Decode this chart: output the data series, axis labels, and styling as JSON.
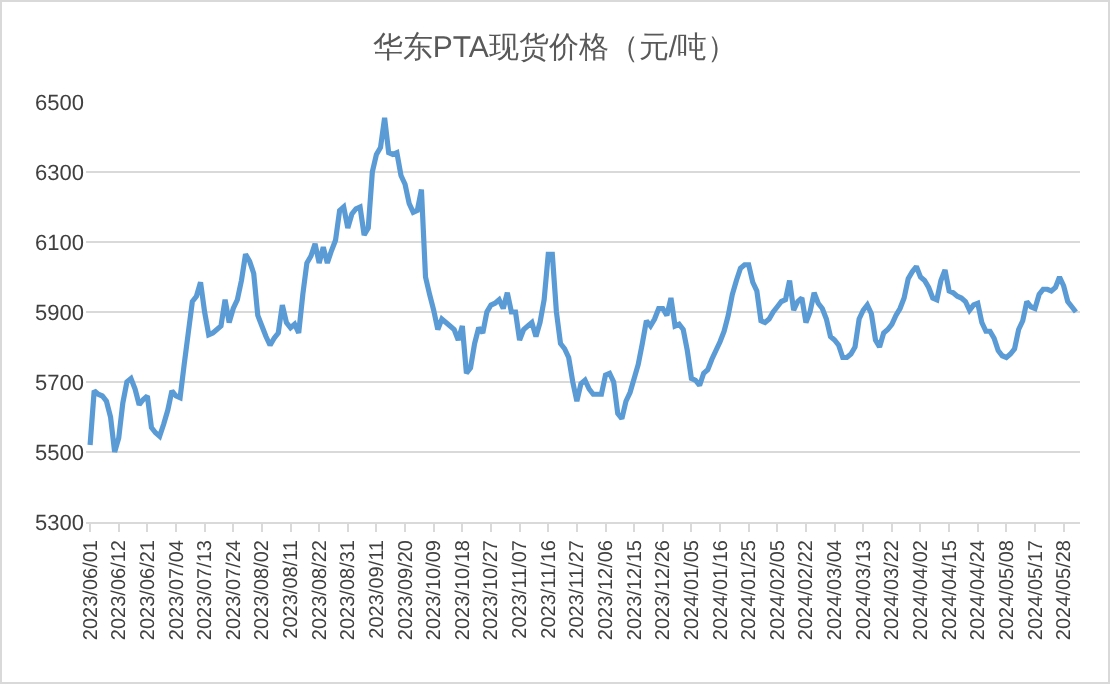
{
  "chart_data": {
    "type": "line",
    "title": "华东PTA现货价格（元/吨）",
    "categories": [
      "2023/06/01",
      null,
      null,
      null,
      null,
      null,
      null,
      "2023/06/12",
      null,
      null,
      null,
      null,
      null,
      null,
      "2023/06/21",
      null,
      null,
      null,
      null,
      null,
      null,
      "2023/07/04",
      null,
      null,
      null,
      null,
      null,
      null,
      "2023/07/13",
      null,
      null,
      null,
      null,
      null,
      null,
      "2023/07/24",
      null,
      null,
      null,
      null,
      null,
      null,
      "2023/08/02",
      null,
      null,
      null,
      null,
      null,
      null,
      "2023/08/11",
      null,
      null,
      null,
      null,
      null,
      null,
      "2023/08/22",
      null,
      null,
      null,
      null,
      null,
      null,
      "2023/08/31",
      null,
      null,
      null,
      null,
      null,
      null,
      "2023/09/11",
      null,
      null,
      null,
      null,
      null,
      null,
      "2023/09/20",
      null,
      null,
      null,
      null,
      null,
      null,
      "2023/10/09",
      null,
      null,
      null,
      null,
      null,
      null,
      "2023/10/18",
      null,
      null,
      null,
      null,
      null,
      null,
      "2023/10/27",
      null,
      null,
      null,
      null,
      null,
      null,
      "2023/11/07",
      null,
      null,
      null,
      null,
      null,
      null,
      "2023/11/16",
      null,
      null,
      null,
      null,
      null,
      null,
      "2023/11/27",
      null,
      null,
      null,
      null,
      null,
      null,
      "2023/12/06",
      null,
      null,
      null,
      null,
      null,
      null,
      "2023/12/15",
      null,
      null,
      null,
      null,
      null,
      null,
      "2023/12/26",
      null,
      null,
      null,
      null,
      null,
      null,
      "2024/01/05",
      null,
      null,
      null,
      null,
      null,
      null,
      "2024/01/16",
      null,
      null,
      null,
      null,
      null,
      null,
      "2024/01/25",
      null,
      null,
      null,
      null,
      null,
      null,
      "2024/02/05",
      null,
      null,
      null,
      null,
      null,
      null,
      "2024/02/22",
      null,
      null,
      null,
      null,
      null,
      null,
      "2024/03/04",
      null,
      null,
      null,
      null,
      null,
      null,
      "2024/03/13",
      null,
      null,
      null,
      null,
      null,
      null,
      "2024/03/22",
      null,
      null,
      null,
      null,
      null,
      null,
      "2024/04/02",
      null,
      null,
      null,
      null,
      null,
      null,
      "2024/04/15",
      null,
      null,
      null,
      null,
      null,
      null,
      "2024/04/24",
      null,
      null,
      null,
      null,
      null,
      null,
      "2024/05/08",
      null,
      null,
      null,
      null,
      null,
      null,
      "2024/05/17",
      null,
      null,
      null,
      null,
      null,
      null,
      "2024/05/28",
      null,
      null,
      null
    ],
    "series": [
      {
        "color": "#5b9bd5",
        "values": [
          5520,
          5675,
          5665,
          5660,
          5645,
          5600,
          5500,
          5540,
          5640,
          5700,
          5710,
          5680,
          5635,
          5650,
          5660,
          5570,
          5555,
          5545,
          5580,
          5620,
          5675,
          5660,
          5655,
          5750,
          5840,
          5930,
          5945,
          5985,
          5900,
          5835,
          5840,
          5850,
          5860,
          5935,
          5870,
          5910,
          5935,
          5990,
          6065,
          6045,
          6010,
          5890,
          5860,
          5830,
          5805,
          5825,
          5840,
          5920,
          5870,
          5855,
          5865,
          5840,
          5950,
          6040,
          6060,
          6095,
          6040,
          6085,
          6040,
          6075,
          6105,
          6190,
          6200,
          6140,
          6180,
          6195,
          6200,
          6120,
          6140,
          6300,
          6350,
          6370,
          6455,
          6355,
          6350,
          6355,
          6290,
          6265,
          6210,
          6185,
          6190,
          6250,
          6000,
          5950,
          5905,
          5850,
          5880,
          5870,
          5860,
          5850,
          5820,
          5860,
          5725,
          5740,
          5810,
          5855,
          5840,
          5900,
          5920,
          5925,
          5935,
          5910,
          5955,
          5900,
          5900,
          5820,
          5850,
          5860,
          5870,
          5830,
          5870,
          5935,
          6065,
          6065,
          5900,
          5810,
          5795,
          5770,
          5700,
          5645,
          5695,
          5705,
          5680,
          5665,
          5665,
          5665,
          5720,
          5725,
          5700,
          5610,
          5595,
          5645,
          5670,
          5710,
          5750,
          5810,
          5875,
          5860,
          5880,
          5910,
          5910,
          5890,
          5940,
          5860,
          5865,
          5850,
          5790,
          5710,
          5705,
          5690,
          5725,
          5735,
          5765,
          5790,
          5815,
          5845,
          5890,
          5950,
          5990,
          6025,
          6035,
          6035,
          5985,
          5960,
          5875,
          5870,
          5880,
          5900,
          5915,
          5930,
          5935,
          5990,
          5905,
          5930,
          5940,
          5870,
          5900,
          5955,
          5925,
          5910,
          5880,
          5830,
          5820,
          5805,
          5770,
          5770,
          5780,
          5800,
          5880,
          5905,
          5920,
          5895,
          5820,
          5800,
          5840,
          5850,
          5865,
          5890,
          5910,
          5940,
          5995,
          6015,
          6030,
          6000,
          5990,
          5970,
          5940,
          5935,
          5990,
          6020,
          5960,
          5955,
          5945,
          5940,
          5930,
          5905,
          5920,
          5925,
          5870,
          5845,
          5845,
          5825,
          5790,
          5775,
          5770,
          5780,
          5795,
          5850,
          5875,
          5930,
          5915,
          5910,
          5950,
          5965,
          5965,
          5960,
          5970,
          6000,
          5975,
          5930,
          5915,
          5900
        ]
      }
    ],
    "ylim": [
      5300,
      6500
    ],
    "yticks": [
      5300,
      5500,
      5700,
      5900,
      6100,
      6300,
      6500
    ],
    "grid": "y"
  }
}
